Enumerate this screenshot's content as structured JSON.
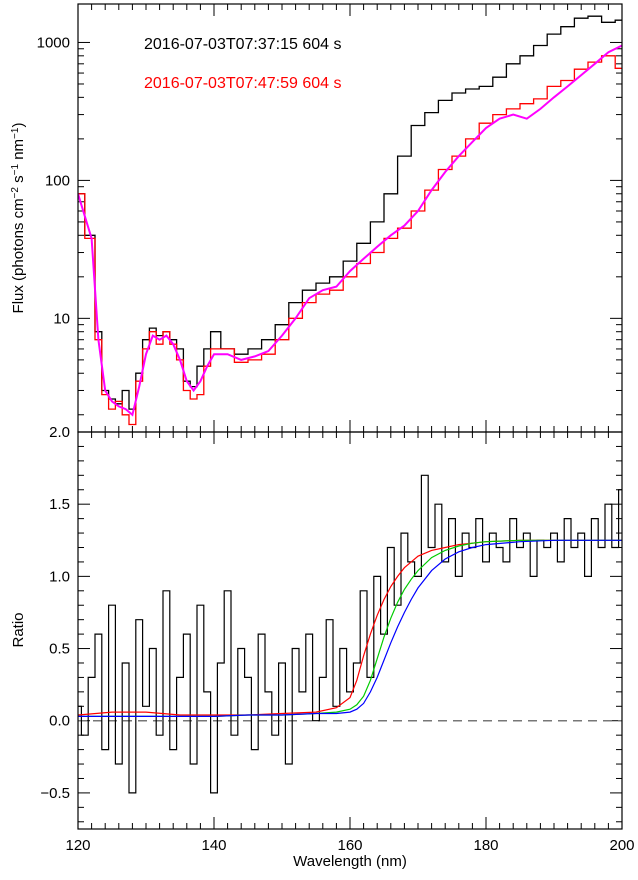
{
  "chart_data": [
    {
      "type": "line",
      "panel": "top",
      "xlabel": "",
      "ylabel": "Flux (photons cm⁻² s⁻¹ nm⁻¹)",
      "ylabel_parts": [
        "Flux (photons cm",
        "−2",
        " s",
        "−1",
        " nm",
        "−1",
        ")"
      ],
      "yscale": "log",
      "xlim": [
        120,
        200
      ],
      "ylim": [
        1.5,
        1900
      ],
      "yticks": [
        10,
        100,
        1000
      ],
      "ytick_labels": [
        "10",
        "100",
        "1000"
      ],
      "legend_placement": "top-left",
      "legend": [
        {
          "label": "2016-07-03T07:37:15   604 s",
          "color": "#000000"
        },
        {
          "label": "2016-07-03T07:47:59   604 s",
          "color": "#ff0000"
        }
      ],
      "series": [
        {
          "color": "#000000",
          "style": "step",
          "x": [
            120,
            122,
            123,
            124,
            125,
            126,
            127,
            128,
            129,
            130,
            131,
            132,
            133,
            134,
            135,
            136,
            137,
            138,
            139,
            140,
            142,
            144,
            146,
            148,
            150,
            152,
            154,
            156,
            158,
            160,
            162,
            164,
            166,
            168,
            170,
            172,
            174,
            176,
            178,
            180,
            182,
            184,
            186,
            188,
            190,
            192,
            194,
            196,
            198,
            200
          ],
          "y": [
            80,
            40,
            8,
            3,
            2.6,
            2.4,
            3,
            2.2,
            4,
            7,
            8.5,
            7.5,
            8,
            7,
            6,
            3.5,
            3.2,
            4.5,
            6,
            8,
            6,
            5.5,
            6,
            7,
            9,
            13,
            16,
            18,
            20,
            26,
            35,
            50,
            80,
            150,
            250,
            310,
            380,
            430,
            460,
            480,
            560,
            700,
            800,
            950,
            1150,
            1300,
            1500,
            1550,
            1400,
            1450
          ]
        },
        {
          "color": "#ff0000",
          "style": "step",
          "x": [
            120,
            122,
            123,
            124,
            125,
            126,
            127,
            128,
            129,
            130,
            131,
            132,
            133,
            134,
            135,
            136,
            137,
            138,
            139,
            140,
            142,
            144,
            146,
            148,
            150,
            152,
            154,
            156,
            158,
            160,
            162,
            164,
            166,
            168,
            170,
            172,
            174,
            176,
            178,
            180,
            182,
            184,
            186,
            188,
            190,
            192,
            194,
            196,
            198,
            200
          ],
          "y": [
            80,
            38,
            7,
            2.8,
            2.2,
            2.5,
            2,
            1.7,
            3.5,
            6,
            8,
            6.5,
            8,
            6.5,
            5,
            3,
            2.6,
            2.8,
            4.5,
            6,
            6,
            4.8,
            5,
            5.5,
            7,
            10,
            13,
            15,
            16,
            20,
            25,
            30,
            38,
            45,
            60,
            85,
            120,
            150,
            200,
            260,
            300,
            330,
            360,
            390,
            480,
            530,
            640,
            720,
            800,
            650
          ]
        },
        {
          "color": "#ff00ff",
          "style": "line",
          "x": [
            120,
            122,
            123,
            124,
            125,
            126,
            127,
            128,
            129,
            130,
            131,
            132,
            133,
            134,
            135,
            136,
            137,
            138,
            139,
            140,
            142,
            144,
            146,
            148,
            150,
            152,
            154,
            156,
            158,
            160,
            162,
            164,
            166,
            168,
            170,
            172,
            174,
            176,
            178,
            180,
            182,
            184,
            186,
            188,
            190,
            192,
            194,
            196,
            198,
            200
          ],
          "y": [
            80,
            38,
            7,
            3,
            2.5,
            2.3,
            2.2,
            2,
            3.2,
            5.5,
            7.5,
            7,
            7.5,
            6.5,
            5,
            3.5,
            3,
            3.5,
            4.5,
            5.5,
            5.5,
            5,
            5.3,
            5.8,
            7.5,
            10,
            14,
            16,
            17,
            22,
            27,
            33,
            40,
            47,
            60,
            85,
            115,
            150,
            190,
            240,
            280,
            300,
            280,
            330,
            400,
            480,
            580,
            700,
            850,
            950
          ]
        }
      ]
    },
    {
      "type": "line",
      "panel": "bottom",
      "xlabel": "Wavelength (nm)",
      "ylabel": "Ratio",
      "xlim": [
        120,
        200
      ],
      "ylim": [
        -0.75,
        2.0
      ],
      "xticks": [
        120,
        140,
        160,
        180,
        200
      ],
      "xtick_labels": [
        "120",
        "140",
        "160",
        "180",
        "200"
      ],
      "yticks": [
        -0.5,
        0.0,
        0.5,
        1.0,
        1.5,
        2.0
      ],
      "ytick_labels": [
        "−0.5",
        "0.0",
        "0.5",
        "1.0",
        "1.5",
        "2.0"
      ],
      "reference_line": {
        "y": 0,
        "style": "dashed",
        "color": "#777777"
      },
      "series": [
        {
          "color": "#000000",
          "style": "step",
          "x": [
            120,
            121,
            122,
            123,
            124,
            125,
            126,
            127,
            128,
            129,
            130,
            131,
            132,
            133,
            134,
            135,
            136,
            137,
            138,
            139,
            140,
            141,
            142,
            143,
            144,
            145,
            146,
            147,
            148,
            149,
            150,
            151,
            152,
            153,
            154,
            155,
            156,
            157,
            158,
            159,
            160,
            161,
            162,
            163,
            164,
            165,
            166,
            167,
            168,
            169,
            170,
            171,
            172,
            173,
            174,
            175,
            176,
            177,
            178,
            179,
            180,
            181,
            182,
            183,
            184,
            185,
            186,
            187,
            188,
            189,
            190,
            191,
            192,
            193,
            194,
            195,
            196,
            197,
            198,
            199,
            200
          ],
          "y": [
            0.1,
            -0.1,
            0.3,
            0.6,
            -0.2,
            0.8,
            -0.3,
            0.4,
            -0.5,
            0.7,
            0.1,
            0.5,
            -0.1,
            0.9,
            -0.2,
            0.3,
            0.6,
            -0.3,
            0.8,
            0.2,
            -0.5,
            0.4,
            0.9,
            -0.1,
            0.5,
            0.3,
            -0.2,
            0.6,
            0.2,
            -0.1,
            0.4,
            -0.3,
            0.5,
            0.2,
            0.6,
            0.0,
            0.3,
            0.7,
            0.1,
            0.5,
            0.2,
            0.4,
            0.9,
            0.3,
            1.0,
            0.6,
            1.2,
            0.8,
            1.3,
            1.1,
            1.0,
            1.7,
            1.2,
            1.5,
            1.1,
            1.4,
            1.0,
            1.3,
            1.2,
            1.4,
            1.1,
            1.3,
            1.2,
            1.1,
            1.4,
            1.2,
            1.3,
            1.0,
            1.25,
            1.2,
            1.3,
            1.1,
            1.4,
            1.2,
            1.3,
            1.0,
            1.4,
            1.2,
            1.5,
            1.2,
            1.6
          ]
        },
        {
          "color": "#ff0000",
          "style": "line",
          "x": [
            120,
            125,
            130,
            135,
            140,
            145,
            150,
            155,
            158,
            160,
            161,
            162,
            163,
            164,
            165,
            166,
            167,
            168,
            169,
            170,
            172,
            174,
            176,
            178,
            180,
            185,
            190,
            195,
            200
          ],
          "y": [
            0.04,
            0.06,
            0.06,
            0.04,
            0.04,
            0.04,
            0.05,
            0.06,
            0.09,
            0.16,
            0.28,
            0.45,
            0.6,
            0.73,
            0.84,
            0.93,
            1.0,
            1.06,
            1.1,
            1.14,
            1.18,
            1.2,
            1.22,
            1.23,
            1.24,
            1.25,
            1.25,
            1.25,
            1.25
          ]
        },
        {
          "color": "#00cc00",
          "style": "line",
          "x": [
            120,
            125,
            130,
            135,
            140,
            145,
            150,
            155,
            158,
            160,
            161,
            162,
            163,
            164,
            165,
            166,
            167,
            168,
            169,
            170,
            172,
            174,
            176,
            178,
            180,
            185,
            190,
            195,
            200
          ],
          "y": [
            0.03,
            0.03,
            0.03,
            0.03,
            0.03,
            0.04,
            0.04,
            0.05,
            0.06,
            0.08,
            0.11,
            0.17,
            0.28,
            0.43,
            0.58,
            0.71,
            0.82,
            0.91,
            0.98,
            1.04,
            1.13,
            1.18,
            1.21,
            1.23,
            1.24,
            1.25,
            1.25,
            1.25,
            1.25
          ]
        },
        {
          "color": "#0000ff",
          "style": "line",
          "x": [
            120,
            125,
            130,
            135,
            140,
            145,
            150,
            155,
            158,
            160,
            161,
            162,
            163,
            164,
            165,
            166,
            167,
            168,
            169,
            170,
            172,
            174,
            176,
            178,
            180,
            185,
            190,
            195,
            200
          ],
          "y": [
            0.03,
            0.03,
            0.03,
            0.03,
            0.03,
            0.04,
            0.04,
            0.05,
            0.05,
            0.06,
            0.08,
            0.12,
            0.2,
            0.3,
            0.42,
            0.54,
            0.65,
            0.75,
            0.84,
            0.92,
            1.04,
            1.12,
            1.17,
            1.2,
            1.22,
            1.24,
            1.25,
            1.25,
            1.25
          ]
        }
      ]
    }
  ]
}
